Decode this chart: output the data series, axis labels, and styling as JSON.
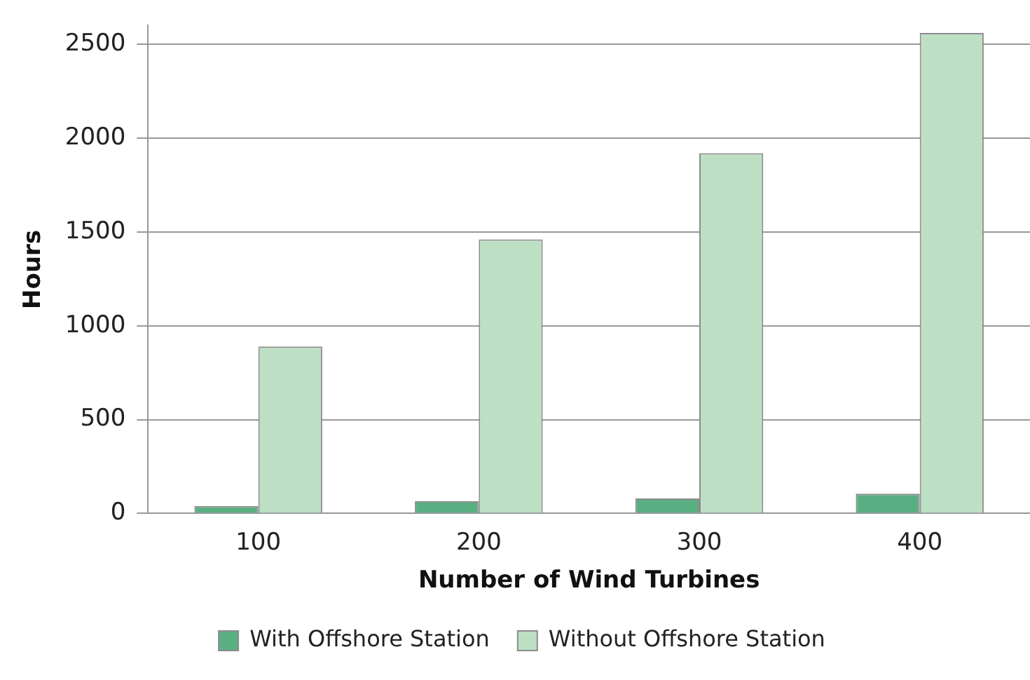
{
  "chart_data": {
    "type": "bar",
    "xlabel": "Number of Wind Turbines",
    "ylabel": "Hours",
    "categories": [
      "100",
      "200",
      "300",
      "400"
    ],
    "series": [
      {
        "name": "With Offshore Station",
        "color": "#5aaf82",
        "values": [
          40,
          65,
          80,
          105
        ]
      },
      {
        "name": "Without Offshore Station",
        "color": "#bde0c5",
        "values": [
          890,
          1460,
          1920,
          2560
        ]
      }
    ],
    "ylim": [
      0,
      2600
    ],
    "yticks": [
      0,
      500,
      1000,
      1500,
      2000,
      2500
    ],
    "grid": "y",
    "legend": "bottom"
  }
}
